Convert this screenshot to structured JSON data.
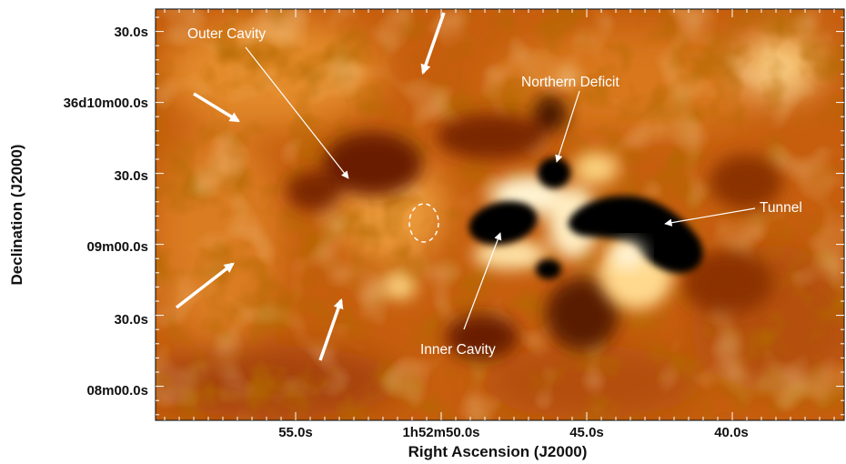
{
  "image": {
    "colormap": {
      "low": "#000000",
      "mid_low": "#7a2600",
      "mid": "#c45c0a",
      "mid_high": "#f5a640",
      "high": "#fff6dc"
    },
    "annotation_color": "#ffffff"
  },
  "axes": {
    "xlabel": "Right Ascension (J2000)",
    "ylabel": "Declination (J2000)",
    "x_ticks": [
      "55.0s",
      "1h52m50.0s",
      "45.0s",
      "40.0s"
    ],
    "y_ticks": [
      "30.0s",
      "36d10m00.0s",
      "30.0s",
      "09m00.0s",
      "30.0s",
      "08m00.0s"
    ]
  },
  "annotations": {
    "outer_cavity": "Outer Cavity",
    "northern_deficit": "Northern Deficit",
    "tunnel": "Tunnel",
    "inner_cavity": "Inner Cavity"
  }
}
